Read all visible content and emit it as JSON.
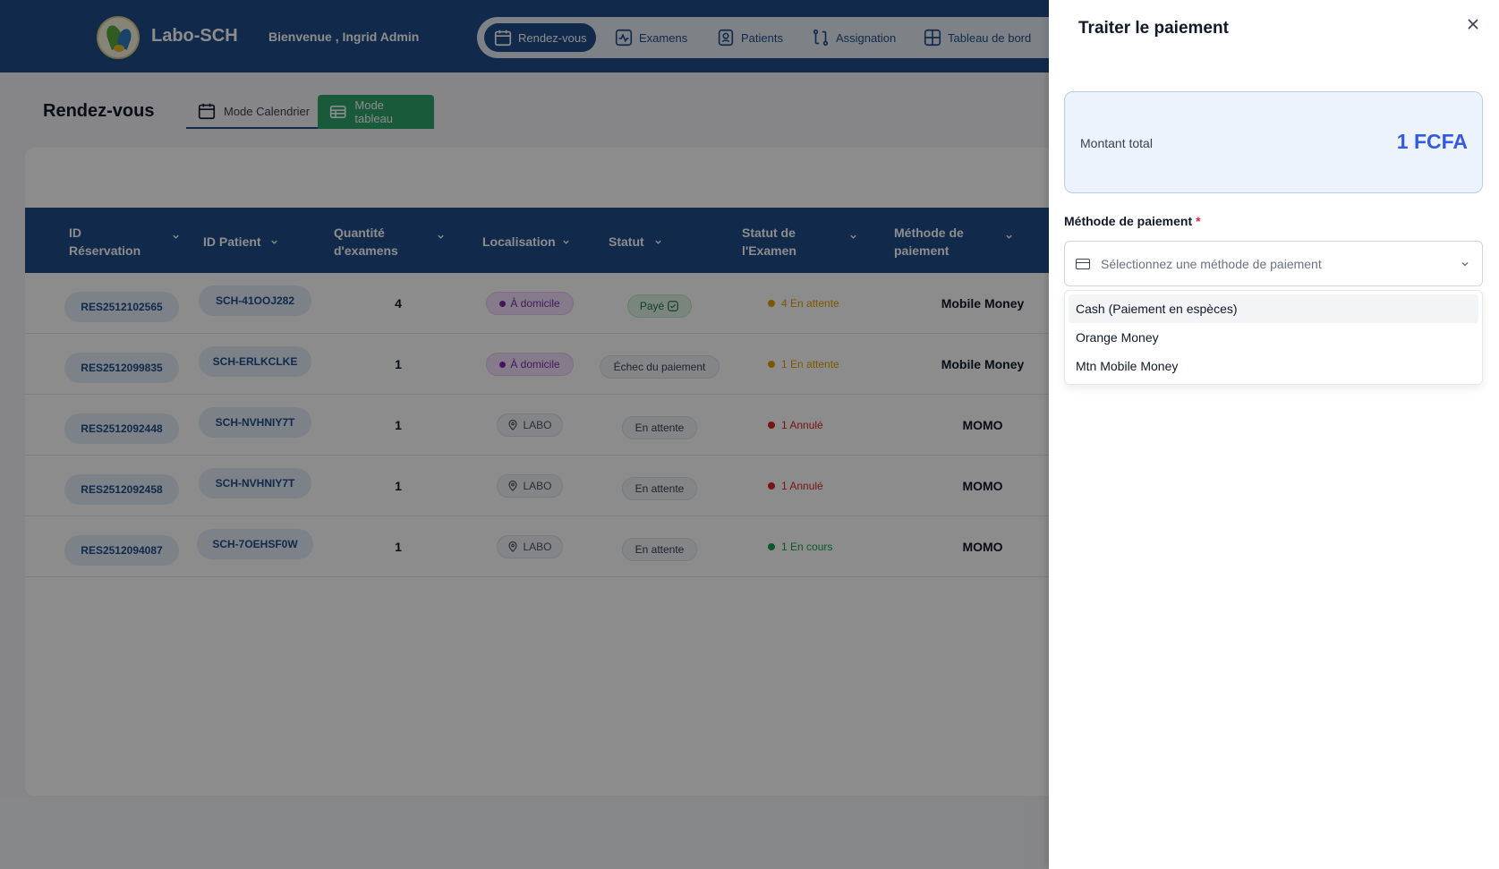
{
  "header": {
    "brand": "Labo-SCH",
    "welcome": "Bienvenue , Ingrid Admin",
    "nav": [
      {
        "label": "Rendez-vous",
        "icon": "calendar-icon",
        "active": true
      },
      {
        "label": "Examens",
        "icon": "activity-icon",
        "active": false
      },
      {
        "label": "Patients",
        "icon": "user-badge-icon",
        "active": false
      },
      {
        "label": "Assignation",
        "icon": "assign-icon",
        "active": false
      },
      {
        "label": "Tableau de bord",
        "icon": "dashboard-icon",
        "active": false
      }
    ]
  },
  "page": {
    "title": "Rendez-vous",
    "view_calendar": "Mode Calendrier",
    "view_table": "Mode tableau"
  },
  "table": {
    "columns": [
      "ID Réservation",
      "ID Patient",
      "Quantité d'examens",
      "Localisation",
      "Statut",
      "Statut de l'Examen",
      "Méthode de paiement"
    ],
    "rows": [
      {
        "reservation": "RES2512102565",
        "patient": "SCH-41OOJ282",
        "quantity": "4",
        "location": "À domicile",
        "status": "Payé",
        "exam_status": "4 En attente",
        "method": "Mobile Money"
      },
      {
        "reservation": "RES2512099835",
        "patient": "SCH-ERLKCLKE",
        "quantity": "1",
        "location": "À domicile",
        "status": "Échec du paiement",
        "exam_status": "1 En attente",
        "method": "Mobile Money"
      },
      {
        "reservation": "RES2512092448",
        "patient": "SCH-NVHNIY7T",
        "quantity": "1",
        "location": "LABO",
        "status": "En attente",
        "exam_status": "1 Annulé",
        "method": "MOMO"
      },
      {
        "reservation": "RES2512092458",
        "patient": "SCH-NVHNIY7T",
        "quantity": "1",
        "location": "LABO",
        "status": "En attente",
        "exam_status": "1 Annulé",
        "method": "MOMO"
      },
      {
        "reservation": "RES2512094087",
        "patient": "SCH-7OEHSF0W",
        "quantity": "1",
        "location": "LABO",
        "status": "En attente",
        "exam_status": "1 En cours",
        "method": "MOMO"
      }
    ]
  },
  "panel": {
    "title": "Traiter le paiement",
    "close_icon": "close-icon",
    "total_label": "Montant total",
    "total_value": "1 FCFA",
    "method_label": "Méthode de paiement",
    "required_mark": "*",
    "select_placeholder": "Sélectionnez une méthode de paiement",
    "options": [
      "Cash (Paiement en espèces)",
      "Orange Money",
      "Mtn Mobile Money"
    ]
  },
  "colors": {
    "header_bg": "#1f4e89",
    "accent_green": "#2ea46b",
    "amount_blue": "#3559e0",
    "pending": "#e0a100",
    "cancelled": "#dc2626",
    "in_progress": "#16a34a"
  }
}
